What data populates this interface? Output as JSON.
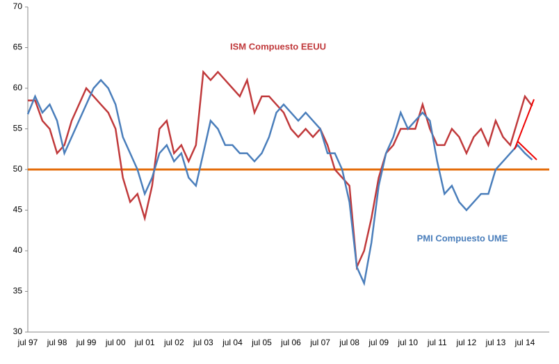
{
  "chart_data": {
    "type": "line",
    "categories": [
      "jul 97",
      null,
      null,
      null,
      "jul 98",
      null,
      null,
      null,
      "jul 99",
      null,
      null,
      null,
      "jul 00",
      null,
      null,
      null,
      "jul 01",
      null,
      null,
      null,
      "jul 02",
      null,
      null,
      null,
      "jul 03",
      null,
      null,
      null,
      "jul 04",
      null,
      null,
      null,
      "jul 05",
      null,
      null,
      null,
      "jul 06",
      null,
      null,
      null,
      "jul 07",
      null,
      null,
      null,
      "jul 08",
      null,
      null,
      null,
      "jul 09",
      null,
      null,
      null,
      "jul 10",
      null,
      null,
      null,
      "jul 11",
      null,
      null,
      null,
      "jul 12",
      null,
      null,
      null,
      "jul 13",
      null,
      null,
      null,
      "jul 14",
      null
    ],
    "series": [
      {
        "name": "ISM Compuesto EEUU",
        "color": "#c0393b",
        "values": [
          58.5,
          58.5,
          56,
          55,
          52,
          53,
          56,
          58,
          60,
          59,
          58,
          57,
          55,
          49,
          46,
          47,
          44,
          48,
          55,
          56,
          52,
          53,
          51,
          53,
          62,
          61,
          62,
          61,
          60,
          59,
          61,
          57,
          59,
          59,
          58,
          57,
          55,
          54,
          55,
          54,
          55,
          53,
          50,
          49,
          48,
          38,
          40,
          44,
          49,
          52,
          53,
          55,
          55,
          55,
          58,
          55,
          53,
          53,
          55,
          54,
          52,
          54,
          55,
          53,
          56,
          54,
          53,
          56,
          59,
          57.8
        ]
      },
      {
        "name": "PMI Compuesto UME",
        "color": "#4a7ebb",
        "values": [
          56.8,
          59,
          57,
          58,
          56,
          52,
          54,
          56,
          58,
          60,
          61,
          60,
          58,
          54,
          52,
          50,
          47,
          49,
          52,
          53,
          51,
          52,
          49,
          48,
          52,
          56,
          55,
          53,
          53,
          52,
          52,
          51,
          52,
          54,
          57,
          58,
          57,
          56,
          57,
          56,
          55,
          52,
          52,
          50,
          46,
          38,
          36,
          41,
          48,
          52,
          54,
          57,
          55,
          56,
          57,
          56,
          51,
          47,
          48,
          46,
          45,
          46,
          47,
          47,
          50,
          51,
          52,
          53,
          52,
          51.2
        ]
      }
    ],
    "reference_line": {
      "value": 50,
      "color": "#e46c0a"
    },
    "ylim": [
      30,
      70
    ],
    "yticks": [
      30,
      35,
      40,
      45,
      50,
      55,
      60,
      65,
      70
    ],
    "grid": false
  }
}
